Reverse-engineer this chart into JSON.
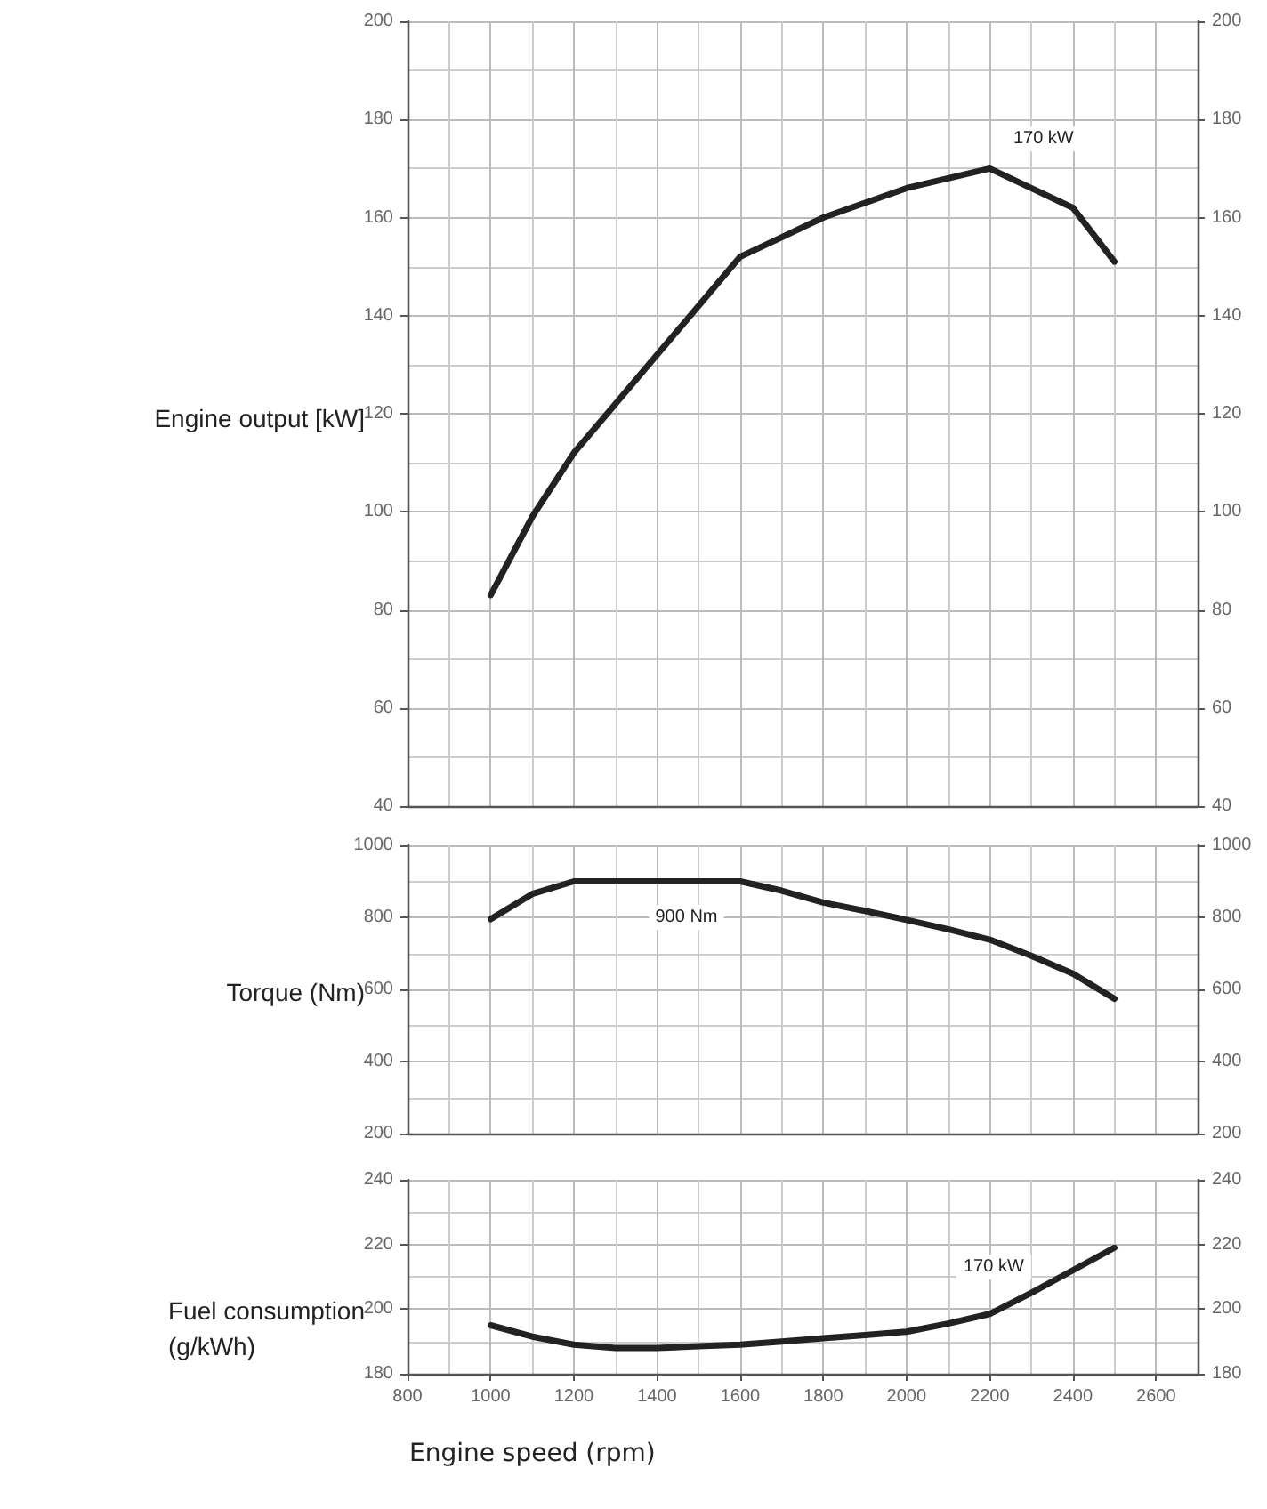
{
  "chart_data": [
    {
      "type": "line",
      "ylabel": "Engine output [kW]",
      "x": [
        1000,
        1100,
        1200,
        1300,
        1400,
        1500,
        1600,
        1700,
        1800,
        1900,
        2000,
        2100,
        2200,
        2300,
        2400,
        2500
      ],
      "xlim": [
        800,
        2700
      ],
      "xticks": [
        800,
        1000,
        1200,
        1400,
        1600,
        1800,
        2000,
        2200,
        2400,
        2600
      ],
      "ylim": [
        40,
        200
      ],
      "yticks": [
        40,
        60,
        80,
        100,
        120,
        140,
        160,
        180,
        200
      ],
      "y2lim": [
        40,
        200
      ],
      "y2ticks": [
        40,
        60,
        80,
        100,
        120,
        140,
        160,
        180,
        200
      ],
      "tick_labels": "y",
      "grid": true,
      "marker": "none",
      "line_style": "solid",
      "series": [
        {
          "color": "#222222",
          "values": [
            83,
            99,
            112,
            122,
            132,
            142,
            152,
            156,
            160,
            163,
            166,
            168,
            170,
            166,
            162,
            151
          ]
        }
      ],
      "annotations": [
        "170 kW"
      ]
    },
    {
      "type": "line",
      "ylabel": "Torque (Nm)",
      "x": [
        1000,
        1100,
        1200,
        1300,
        1400,
        1500,
        1600,
        1700,
        1800,
        1900,
        2000,
        2100,
        2200,
        2300,
        2400,
        2500
      ],
      "xlim": [
        800,
        2700
      ],
      "xticks": [
        800,
        1000,
        1200,
        1400,
        1600,
        1800,
        2000,
        2200,
        2400,
        2600
      ],
      "ylim": [
        200,
        1000
      ],
      "yticks": [
        200,
        400,
        600,
        800,
        1000
      ],
      "y2lim": [
        200,
        1000
      ],
      "y2ticks": [
        200,
        400,
        600,
        800,
        1000
      ],
      "tick_labels": "y",
      "grid": true,
      "marker": "none",
      "line_style": "solid",
      "series": [
        {
          "color": "#222222",
          "values": [
            795,
            865,
            900,
            900,
            900,
            900,
            900,
            874,
            841,
            818,
            793,
            767,
            738,
            693,
            644,
            574
          ]
        }
      ],
      "annotations": [
        "900 Nm"
      ]
    },
    {
      "type": "line",
      "ylabel": "Fuel consumption\n(g/kWh)",
      "xlabel": "Engine speed (rpm)",
      "x": [
        1000,
        1100,
        1200,
        1300,
        1400,
        1500,
        1600,
        1700,
        1800,
        1900,
        2000,
        2100,
        2200,
        2300,
        2400,
        2500
      ],
      "xlim": [
        800,
        2700
      ],
      "xticks": [
        800,
        1000,
        1200,
        1400,
        1600,
        1800,
        2000,
        2200,
        2400,
        2600
      ],
      "ylim": [
        180,
        240
      ],
      "yticks": [
        180,
        200,
        220,
        240
      ],
      "y2lim": [
        180,
        240
      ],
      "y2ticks": [
        180,
        200,
        220,
        240
      ],
      "grid": true,
      "marker": "none",
      "line_style": "solid",
      "series": [
        {
          "color": "#222222",
          "values": [
            195,
            191.5,
            189,
            188,
            188,
            188.5,
            189,
            190,
            191,
            192,
            193,
            195.5,
            198.5,
            205,
            212,
            219
          ]
        }
      ],
      "annotations": [
        "170 kW"
      ]
    }
  ]
}
